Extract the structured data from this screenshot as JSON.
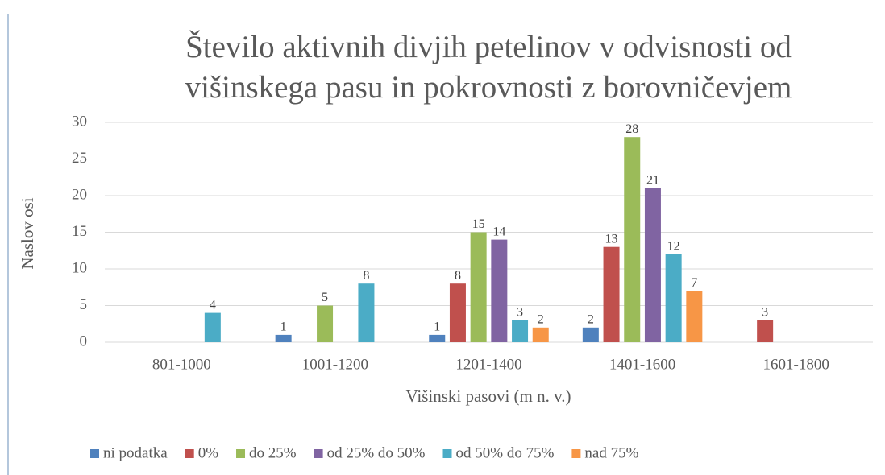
{
  "chart_data": {
    "type": "bar",
    "title": "Število aktivnih divjih petelinov v odvisnosti od višinskega pasu in pokrovnosti z borovničevjem",
    "x_label": "Višinski pasovi (m n. v.)",
    "y_label": "Naslov osi",
    "categories": [
      "801-1000",
      "1001-1200",
      "1201-1400",
      "1401-1600",
      "1601-1800"
    ],
    "series": [
      {
        "name": "ni podatka",
        "color": "#4f81bd",
        "values": [
          null,
          1,
          1,
          2,
          null
        ]
      },
      {
        "name": "0%",
        "color": "#c0504d",
        "values": [
          null,
          null,
          8,
          13,
          3
        ]
      },
      {
        "name": "do 25%",
        "color": "#9bbb59",
        "values": [
          null,
          5,
          15,
          28,
          null
        ]
      },
      {
        "name": "od 25% do 50%",
        "color": "#8064a2",
        "values": [
          null,
          null,
          14,
          21,
          null
        ]
      },
      {
        "name": "od 50% do 75%",
        "color": "#4bacc6",
        "values": [
          4,
          8,
          3,
          12,
          null
        ]
      },
      {
        "name": "nad 75%",
        "color": "#f79646",
        "values": [
          null,
          null,
          2,
          7,
          null
        ]
      }
    ],
    "ylim": [
      0,
      30
    ],
    "yticks": [
      0,
      5,
      10,
      15,
      20,
      25,
      30
    ],
    "grid": true,
    "legend": "bottom"
  }
}
